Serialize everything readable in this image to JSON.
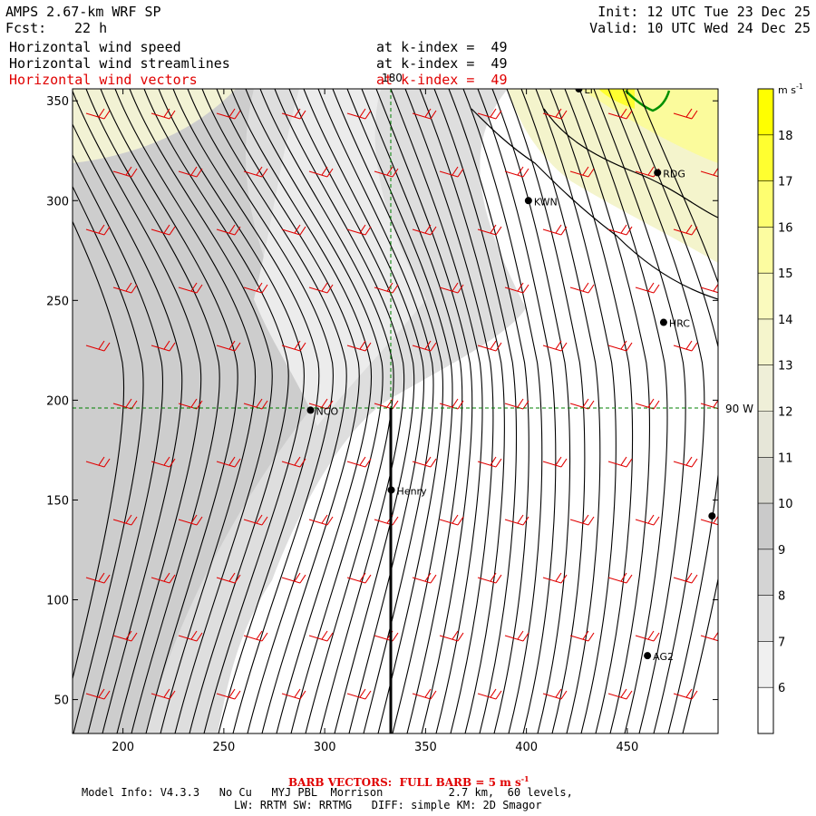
{
  "header": {
    "title": "AMPS 2.67-km WRF SP",
    "fcst_label": "Fcst:",
    "fcst_value": "22 h",
    "init": "Init: 12 UTC Tue 23 Dec 25",
    "valid": "Valid: 10 UTC Wed 24 Dec 25"
  },
  "fields": [
    {
      "name": "Horizontal wind speed",
      "level": "at k-index =  49"
    },
    {
      "name": "Horizontal wind streamlines",
      "level": "at k-index =  49"
    },
    {
      "name": "Horizontal wind vectors",
      "level": "at k-index =  49"
    }
  ],
  "map": {
    "x_axis": {
      "ticks": [
        "200",
        "250",
        "300",
        "350",
        "400",
        "450"
      ],
      "range": [
        175,
        495
      ]
    },
    "y_axis": {
      "ticks": [
        "50",
        "100",
        "150",
        "200",
        "250",
        "300",
        "350"
      ],
      "range": [
        33,
        356
      ]
    },
    "meridian_label": "180",
    "parallel_label": "90 W",
    "stations": [
      {
        "id": "NCO",
        "x": 293,
        "y": 195
      },
      {
        "id": "Henry",
        "x": 333,
        "y": 155
      },
      {
        "id": "KWN",
        "x": 401,
        "y": 300
      },
      {
        "id": "RDG",
        "x": 465,
        "y": 314
      },
      {
        "id": "HRC",
        "x": 468,
        "y": 239
      },
      {
        "id": "AG2",
        "x": 460,
        "y": 72
      },
      {
        "id": "LI",
        "x": 426,
        "y": 356
      },
      {
        "id": "",
        "x": 492,
        "y": 142
      }
    ]
  },
  "colorbar": {
    "unit": "m s",
    "unit_exp": "-1",
    "labels": [
      "6",
      "7",
      "8",
      "9",
      "10",
      "11",
      "12",
      "13",
      "14",
      "15",
      "16",
      "17",
      "18"
    ],
    "colors": [
      "#ffffff",
      "#f0f0f0",
      "#e2e2e2",
      "#d4d4d4",
      "#cacaca",
      "#d8d8d0",
      "#e6e6d8",
      "#efefd8",
      "#f5f5cc",
      "#fafabe",
      "#fcfca0",
      "#fefe70",
      "#ffff30",
      "#ffff00"
    ]
  },
  "footer": {
    "barb_note": "BARB VECTORS:  FULL BARB = 5 m s",
    "barb_exp": "-1",
    "model_info": "Model Info: V4.3.3   No Cu   MYJ PBL  Morrison          2.7 km,  60 levels,",
    "physics": "LW: RRTM SW: RRTMG   DIFF: simple KM: 2D Smagor"
  }
}
